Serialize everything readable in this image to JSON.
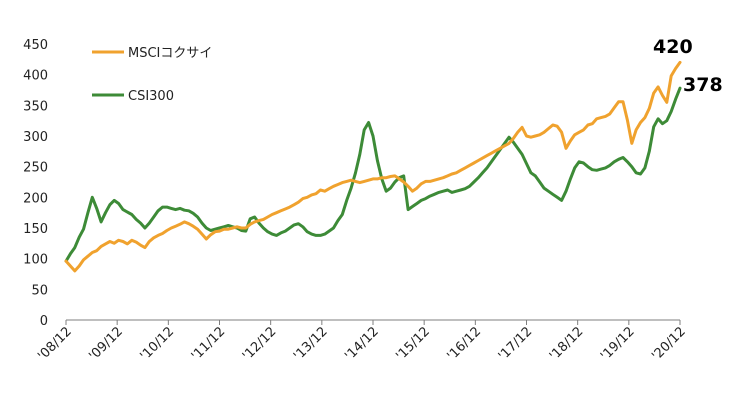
{
  "chart_data": {
    "type": "line",
    "title": "",
    "xlabel": "",
    "ylabel": "",
    "ylim": [
      0,
      450
    ],
    "yticks": [
      0,
      50,
      100,
      150,
      200,
      250,
      300,
      350,
      400,
      450
    ],
    "xtick_labels": [
      "'08/12",
      "'09/12",
      "'10/12",
      "'11/12",
      "'12/12",
      "'13/12",
      "'14/12",
      "'15/12",
      "'16/12",
      "'17/12",
      "'18/12",
      "'19/12",
      "'20/12"
    ],
    "grid": false,
    "legend_position": "top-left",
    "series": [
      {
        "name": "MSCIコクサイ",
        "color": "#F0A22E",
        "end_label": "420",
        "values": [
          96,
          88,
          80,
          88,
          98,
          104,
          110,
          113,
          120,
          124,
          128,
          125,
          130,
          128,
          124,
          130,
          127,
          122,
          118,
          128,
          134,
          138,
          141,
          146,
          150,
          153,
          156,
          160,
          157,
          153,
          148,
          140,
          132,
          139,
          144,
          145,
          148,
          148,
          150,
          152,
          150,
          150,
          156,
          160,
          162,
          164,
          168,
          172,
          175,
          178,
          181,
          184,
          188,
          192,
          198,
          200,
          204,
          206,
          212,
          210,
          214,
          218,
          221,
          224,
          226,
          228,
          226,
          224,
          226,
          228,
          230,
          230,
          232,
          232,
          234,
          235,
          230,
          225,
          218,
          210,
          215,
          222,
          226,
          226,
          228,
          230,
          232,
          235,
          238,
          240,
          244,
          248,
          252,
          256,
          260,
          264,
          268,
          272,
          276,
          280,
          284,
          288,
          296,
          306,
          314,
          300,
          298,
          300,
          302,
          306,
          312,
          318,
          316,
          306,
          280,
          292,
          302,
          306,
          310,
          318,
          320,
          328,
          330,
          332,
          336,
          346,
          356,
          356,
          326,
          288,
          310,
          322,
          330,
          345,
          370,
          380,
          366,
          355,
          398,
          410,
          420
        ]
      },
      {
        "name": "CSI300",
        "color": "#3D8B37",
        "end_label": "378",
        "values": [
          96,
          108,
          118,
          135,
          148,
          175,
          200,
          182,
          160,
          175,
          188,
          195,
          190,
          180,
          176,
          172,
          164,
          158,
          150,
          158,
          168,
          178,
          184,
          184,
          182,
          180,
          182,
          179,
          178,
          174,
          168,
          158,
          150,
          146,
          148,
          150,
          152,
          154,
          152,
          150,
          146,
          145,
          165,
          168,
          158,
          150,
          144,
          140,
          138,
          142,
          145,
          150,
          155,
          157,
          152,
          144,
          140,
          138,
          138,
          140,
          145,
          150,
          162,
          172,
          195,
          215,
          240,
          270,
          310,
          322,
          300,
          260,
          230,
          210,
          215,
          225,
          232,
          235,
          180,
          185,
          190,
          195,
          198,
          202,
          205,
          208,
          210,
          212,
          208,
          210,
          212,
          214,
          218,
          225,
          232,
          240,
          248,
          258,
          268,
          278,
          288,
          298,
          290,
          280,
          270,
          255,
          240,
          235,
          225,
          215,
          210,
          205,
          200,
          195,
          210,
          230,
          248,
          258,
          256,
          250,
          245,
          244,
          246,
          248,
          252,
          258,
          262,
          265,
          258,
          250,
          240,
          238,
          248,
          275,
          315,
          328,
          320,
          325,
          340,
          360,
          378
        ]
      }
    ]
  }
}
